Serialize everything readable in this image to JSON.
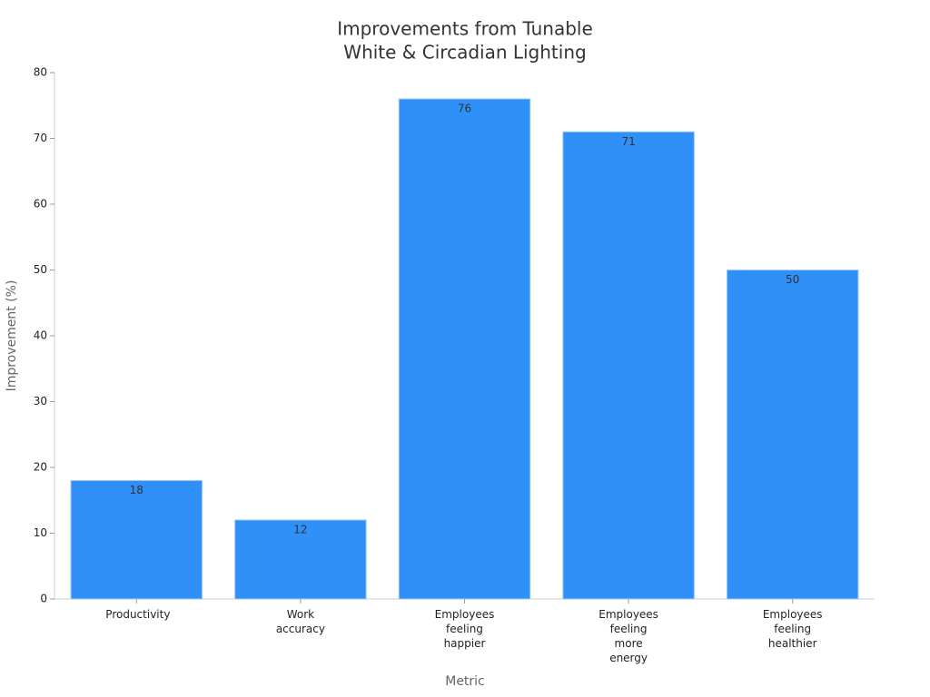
{
  "chart_data": {
    "type": "bar",
    "title": [
      "Improvements from Tunable",
      "White & Circadian Lighting"
    ],
    "x_label": "Metric",
    "y_label": "Improvement (%)",
    "categories": [
      "Productivity",
      "Work accuracy",
      "Employees feeling happier",
      "Employees feeling more energy",
      "Employees feeling healthier"
    ],
    "values": [
      18,
      12,
      76,
      71,
      50
    ],
    "color": "#2f91f7",
    "ylim": [
      0,
      80
    ],
    "yticks": [
      0,
      10,
      20,
      30,
      40,
      50,
      60,
      70,
      80
    ],
    "grid": false
  }
}
